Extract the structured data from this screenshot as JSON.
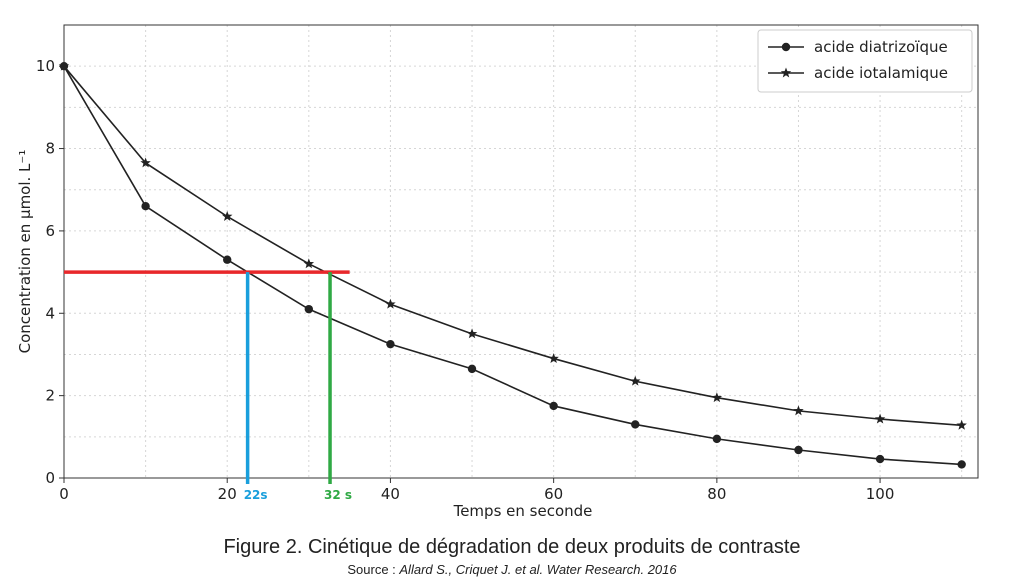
{
  "chart_data": {
    "type": "line",
    "xlabel": "Temps en seconde",
    "ylabel": "Concentration en µmol. L⁻¹",
    "xlim": [
      0,
      112
    ],
    "ylim": [
      0,
      11
    ],
    "x_ticks": [
      0,
      20,
      40,
      60,
      80,
      100
    ],
    "y_ticks": [
      0,
      2,
      4,
      6,
      8,
      10
    ],
    "x_tick_labels": [
      "0",
      "20",
      "40",
      "60",
      "80",
      "100"
    ],
    "y_tick_labels": [
      "0",
      "2",
      "4",
      "6",
      "8",
      "10"
    ],
    "grid": true,
    "legend_position": "top-right",
    "series": [
      {
        "name": "acide diatrizoïque",
        "marker": "circle",
        "x": [
          0,
          10,
          20,
          30,
          40,
          50,
          60,
          70,
          80,
          90,
          100,
          110
        ],
        "y": [
          10,
          6.6,
          5.3,
          4.1,
          3.25,
          2.65,
          1.75,
          1.3,
          0.95,
          0.68,
          0.46,
          0.33
        ]
      },
      {
        "name": "acide iotalamique",
        "marker": "star",
        "x": [
          0,
          10,
          20,
          30,
          40,
          50,
          60,
          70,
          80,
          90,
          100,
          110
        ],
        "y": [
          10,
          7.65,
          6.35,
          5.2,
          4.22,
          3.5,
          2.9,
          2.35,
          1.95,
          1.63,
          1.43,
          1.28
        ]
      }
    ],
    "annotations": {
      "threshold_line": {
        "y": 5,
        "x_start": 0,
        "x_end": 35,
        "color": "#e8282b"
      },
      "markers": [
        {
          "x": 22.5,
          "label": "22s",
          "color": "#1a9fdc"
        },
        {
          "x": 32.6,
          "label": "32 s",
          "color": "#2fa944"
        }
      ]
    }
  },
  "caption": {
    "title": "Figure 2. Cinétique de dégradation de deux produits de contraste",
    "source_prefix": "Source : ",
    "source_italic": "Allard S., Criquet J. et al. Water Research. 2016"
  }
}
